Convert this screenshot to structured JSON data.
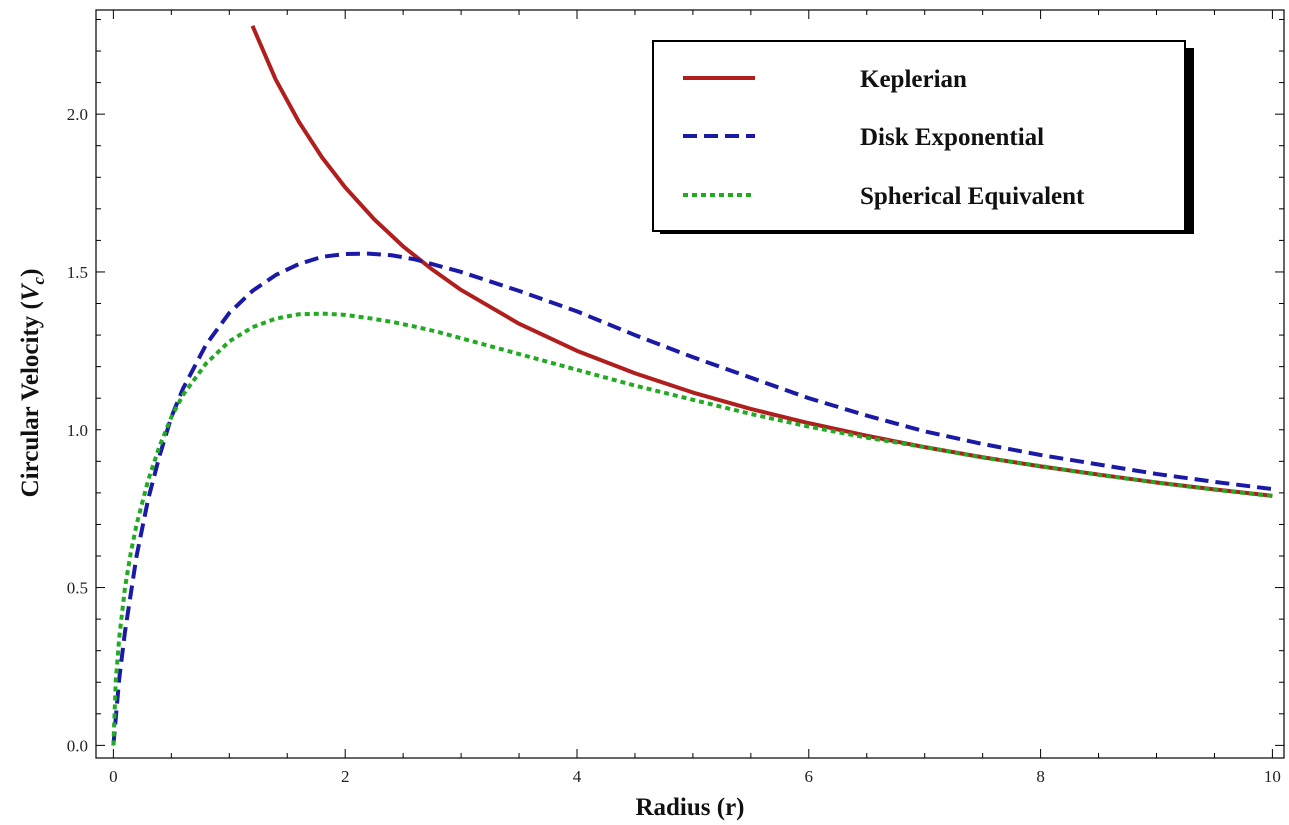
{
  "chart_data": {
    "type": "line",
    "title": "",
    "xlabel": "Radius (r)",
    "ylabel_main": "Circular Velocity (",
    "ylabel_symbol": "V",
    "ylabel_subscript": "c",
    "ylabel_close": ")",
    "xlim": [
      -0.15,
      10.1
    ],
    "ylim": [
      -0.04,
      2.33
    ],
    "xticks": [
      0,
      2,
      4,
      6,
      8,
      10
    ],
    "xtick_labels": [
      "0",
      "2",
      "4",
      "6",
      "8",
      "10"
    ],
    "yticks": [
      0.0,
      0.5,
      1.0,
      1.5,
      2.0
    ],
    "ytick_labels": [
      "0.0",
      "0.5",
      "1.0",
      "1.5",
      "2.0"
    ],
    "grid": false,
    "legend_position": "top-right",
    "series": [
      {
        "name": "Keplerian",
        "color": "#b01e1e",
        "style": "solid",
        "x": [
          1.2,
          1.4,
          1.6,
          1.8,
          2.0,
          2.25,
          2.5,
          2.75,
          3.0,
          3.5,
          4.0,
          4.5,
          5.0,
          5.5,
          6.0,
          6.5,
          7.0,
          7.5,
          8.0,
          8.5,
          9.0,
          9.5,
          10.0
        ],
        "y": [
          2.28,
          2.11,
          1.976,
          1.863,
          1.768,
          1.667,
          1.581,
          1.508,
          1.443,
          1.336,
          1.25,
          1.179,
          1.118,
          1.066,
          1.021,
          0.981,
          0.945,
          0.913,
          0.884,
          0.858,
          0.833,
          0.811,
          0.791
        ]
      },
      {
        "name": "Disk Exponential",
        "color": "#1a1aa6",
        "style": "dashed",
        "x": [
          0,
          0.05,
          0.1,
          0.2,
          0.3,
          0.4,
          0.5,
          0.6,
          0.8,
          1.0,
          1.2,
          1.4,
          1.6,
          1.8,
          2.0,
          2.2,
          2.4,
          2.6,
          2.8,
          3.0,
          3.5,
          4.0,
          4.5,
          5.0,
          5.5,
          6.0,
          6.5,
          7.0,
          7.5,
          8.0,
          8.5,
          9.0,
          9.5,
          10.0
        ],
        "y": [
          0.0,
          0.21,
          0.36,
          0.6,
          0.78,
          0.92,
          1.04,
          1.13,
          1.27,
          1.37,
          1.44,
          1.49,
          1.525,
          1.548,
          1.557,
          1.558,
          1.553,
          1.54,
          1.52,
          1.5,
          1.44,
          1.375,
          1.3,
          1.23,
          1.165,
          1.1,
          1.045,
          0.995,
          0.955,
          0.92,
          0.89,
          0.86,
          0.835,
          0.812
        ]
      },
      {
        "name": "Spherical Equivalent",
        "color": "#22aa22",
        "style": "dotted",
        "x": [
          0,
          0.02,
          0.05,
          0.1,
          0.15,
          0.2,
          0.3,
          0.4,
          0.5,
          0.6,
          0.8,
          1.0,
          1.2,
          1.4,
          1.6,
          1.8,
          2.0,
          2.2,
          2.4,
          2.6,
          2.8,
          3.0,
          3.5,
          4.0,
          4.5,
          5.0,
          5.5,
          6.0,
          6.5,
          7.0,
          7.5,
          8.0,
          8.5,
          9.0,
          9.5,
          10.0
        ],
        "y": [
          0.0,
          0.2,
          0.34,
          0.5,
          0.61,
          0.7,
          0.84,
          0.95,
          1.04,
          1.11,
          1.21,
          1.28,
          1.325,
          1.352,
          1.366,
          1.368,
          1.364,
          1.354,
          1.342,
          1.327,
          1.31,
          1.29,
          1.24,
          1.19,
          1.14,
          1.095,
          1.05,
          1.01,
          0.975,
          0.945,
          0.912,
          0.885,
          0.857,
          0.833,
          0.81,
          0.79
        ]
      }
    ]
  }
}
